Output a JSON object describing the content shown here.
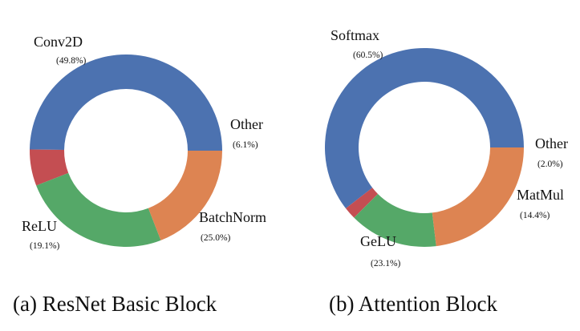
{
  "chart_data": [
    {
      "type": "pie",
      "style": "donut",
      "caption": "(a) ResNet Basic Block",
      "slices": [
        {
          "label": "Conv2D",
          "percent": 49.8,
          "percent_text": "(49.8%)",
          "color": "#4c72b0"
        },
        {
          "label": "Other",
          "percent": 6.1,
          "percent_text": "(6.1%)",
          "color": "#c44e52"
        },
        {
          "label": "BatchNorm",
          "percent": 25.0,
          "percent_text": "(25.0%)",
          "color": "#55a868"
        },
        {
          "label": "ReLU",
          "percent": 19.1,
          "percent_text": "(19.1%)",
          "color": "#dd8452"
        }
      ]
    },
    {
      "type": "pie",
      "style": "donut",
      "caption": "(b) Attention Block",
      "slices": [
        {
          "label": "Softmax",
          "percent": 60.5,
          "percent_text": "(60.5%)",
          "color": "#4c72b0"
        },
        {
          "label": "Other",
          "percent": 2.0,
          "percent_text": "(2.0%)",
          "color": "#c44e52"
        },
        {
          "label": "MatMul",
          "percent": 14.4,
          "percent_text": "(14.4%)",
          "color": "#55a868"
        },
        {
          "label": "GeLU",
          "percent": 23.1,
          "percent_text": "(23.1%)",
          "color": "#dd8452"
        }
      ]
    }
  ]
}
